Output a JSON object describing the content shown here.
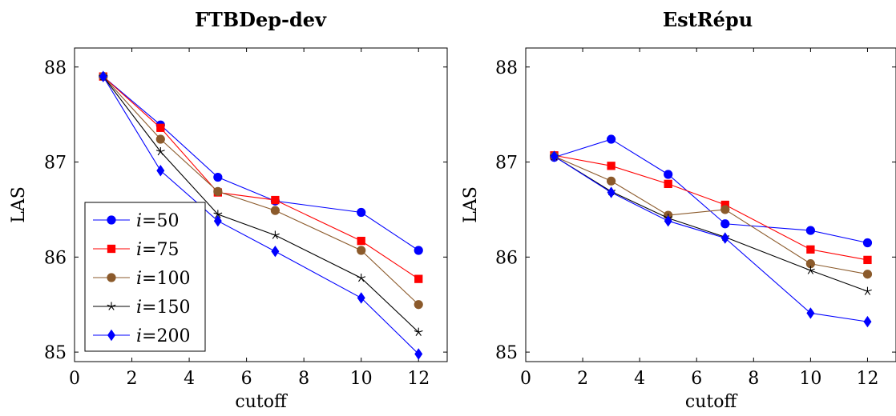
{
  "chart_data": [
    {
      "type": "line",
      "title": "FTBDep-dev",
      "xlabel": "cutoff",
      "ylabel": "LAS",
      "xlim": [
        0,
        13
      ],
      "ylim": [
        84.9,
        88.2
      ],
      "xticks": [
        0,
        2,
        4,
        6,
        8,
        10,
        12
      ],
      "yticks": [
        85,
        86,
        87,
        88
      ],
      "x": [
        1,
        3,
        5,
        7,
        10,
        12
      ],
      "grid": false,
      "legend_position": "bottom-left",
      "series": [
        {
          "name": "i=50",
          "var": "i",
          "num": "50",
          "color": "#0000ff",
          "marker": "circle",
          "values": [
            87.9,
            87.39,
            86.84,
            86.59,
            86.47,
            86.07
          ]
        },
        {
          "name": "i=75",
          "var": "i",
          "num": "75",
          "color": "#ff0000",
          "marker": "square",
          "values": [
            87.9,
            87.36,
            86.68,
            86.6,
            86.17,
            85.77
          ]
        },
        {
          "name": "i=100",
          "var": "i",
          "num": "100",
          "color": "#8b5a2b",
          "marker": "circle",
          "values": [
            87.9,
            87.24,
            86.69,
            86.49,
            86.07,
            85.5
          ]
        },
        {
          "name": "i=150",
          "var": "i",
          "num": "150",
          "color": "#000000",
          "marker": "star",
          "values": [
            87.9,
            87.11,
            86.45,
            86.23,
            85.78,
            85.21
          ]
        },
        {
          "name": "i=200",
          "var": "i",
          "num": "200",
          "color": "#0000ff",
          "marker": "diamond",
          "values": [
            87.9,
            86.91,
            86.38,
            86.06,
            85.57,
            84.98
          ]
        }
      ]
    },
    {
      "type": "line",
      "title": "EstRépu",
      "xlabel": "cutoff",
      "ylabel": "LAS",
      "xlim": [
        0,
        13
      ],
      "ylim": [
        84.9,
        88.2
      ],
      "xticks": [
        0,
        2,
        4,
        6,
        8,
        10,
        12
      ],
      "yticks": [
        85,
        86,
        87,
        88
      ],
      "x": [
        1,
        3,
        5,
        7,
        10,
        12
      ],
      "grid": false,
      "series": [
        {
          "name": "i=50",
          "color": "#0000ff",
          "marker": "circle",
          "values": [
            87.05,
            87.24,
            86.87,
            86.35,
            86.28,
            86.15
          ]
        },
        {
          "name": "i=75",
          "color": "#ff0000",
          "marker": "square",
          "values": [
            87.07,
            86.96,
            86.77,
            86.55,
            86.08,
            85.97
          ]
        },
        {
          "name": "i=100",
          "color": "#8b5a2b",
          "marker": "circle",
          "values": [
            87.06,
            86.8,
            86.44,
            86.5,
            85.93,
            85.82
          ]
        },
        {
          "name": "i=150",
          "color": "#000000",
          "marker": "star",
          "values": [
            87.06,
            86.69,
            86.41,
            86.21,
            85.86,
            85.64
          ]
        },
        {
          "name": "i=200",
          "color": "#0000ff",
          "marker": "diamond",
          "values": [
            87.06,
            86.68,
            86.38,
            86.2,
            85.41,
            85.32
          ]
        }
      ]
    }
  ]
}
